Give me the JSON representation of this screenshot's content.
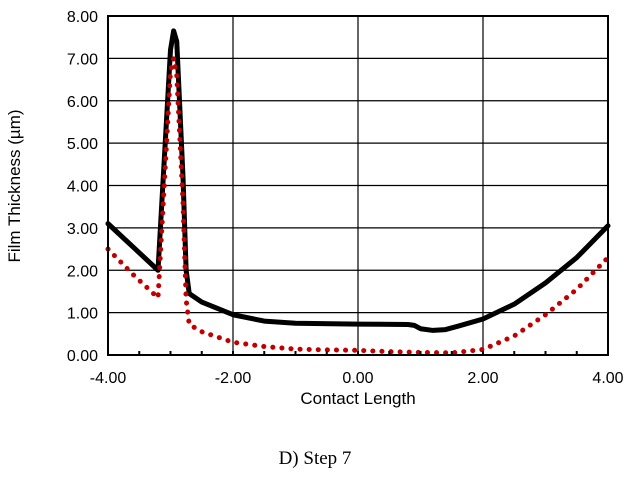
{
  "chart_data": {
    "type": "line",
    "title": "",
    "xlabel": "Contact Length",
    "ylabel": "Film Thickness (µm)",
    "xlim": [
      -4.0,
      4.0
    ],
    "ylim": [
      0.0,
      8.0
    ],
    "x_ticks": [
      "-4.00",
      "-2.00",
      "0.00",
      "2.00",
      "4.00"
    ],
    "y_ticks": [
      "0.00",
      "1.00",
      "2.00",
      "3.00",
      "4.00",
      "5.00",
      "6.00",
      "7.00",
      "8.00"
    ],
    "grid": true,
    "legend": "none",
    "series": [
      {
        "style": "solid",
        "color": "#000000",
        "x": [
          -4.0,
          -3.6,
          -3.2,
          -3.1,
          -3.0,
          -2.95,
          -2.9,
          -2.8,
          -2.75,
          -2.7,
          -2.5,
          -2.0,
          -1.5,
          -1.0,
          0.0,
          0.8,
          0.9,
          1.0,
          1.2,
          1.4,
          1.6,
          2.0,
          2.5,
          3.0,
          3.5,
          4.0
        ],
        "y": [
          3.1,
          2.55,
          2.0,
          4.6,
          7.2,
          7.65,
          7.4,
          4.2,
          2.0,
          1.45,
          1.25,
          0.95,
          0.8,
          0.75,
          0.73,
          0.72,
          0.7,
          0.62,
          0.58,
          0.6,
          0.68,
          0.85,
          1.2,
          1.7,
          2.3,
          3.05
        ]
      },
      {
        "style": "dotted",
        "color": "#c00000",
        "x": [
          -4.0,
          -3.6,
          -3.2,
          -3.1,
          -3.0,
          -2.95,
          -2.9,
          -2.8,
          -2.75,
          -2.7,
          -2.5,
          -2.0,
          -1.5,
          -1.0,
          -0.5,
          0.0,
          0.5,
          1.0,
          1.5,
          2.0,
          2.5,
          3.0,
          3.5,
          4.0
        ],
        "y": [
          2.5,
          1.9,
          1.35,
          4.0,
          6.7,
          7.0,
          6.6,
          3.6,
          1.3,
          0.72,
          0.55,
          0.3,
          0.2,
          0.14,
          0.12,
          0.11,
          0.08,
          0.06,
          0.05,
          0.13,
          0.45,
          0.95,
          1.55,
          2.3
        ]
      }
    ]
  },
  "caption": "D) Step 7"
}
